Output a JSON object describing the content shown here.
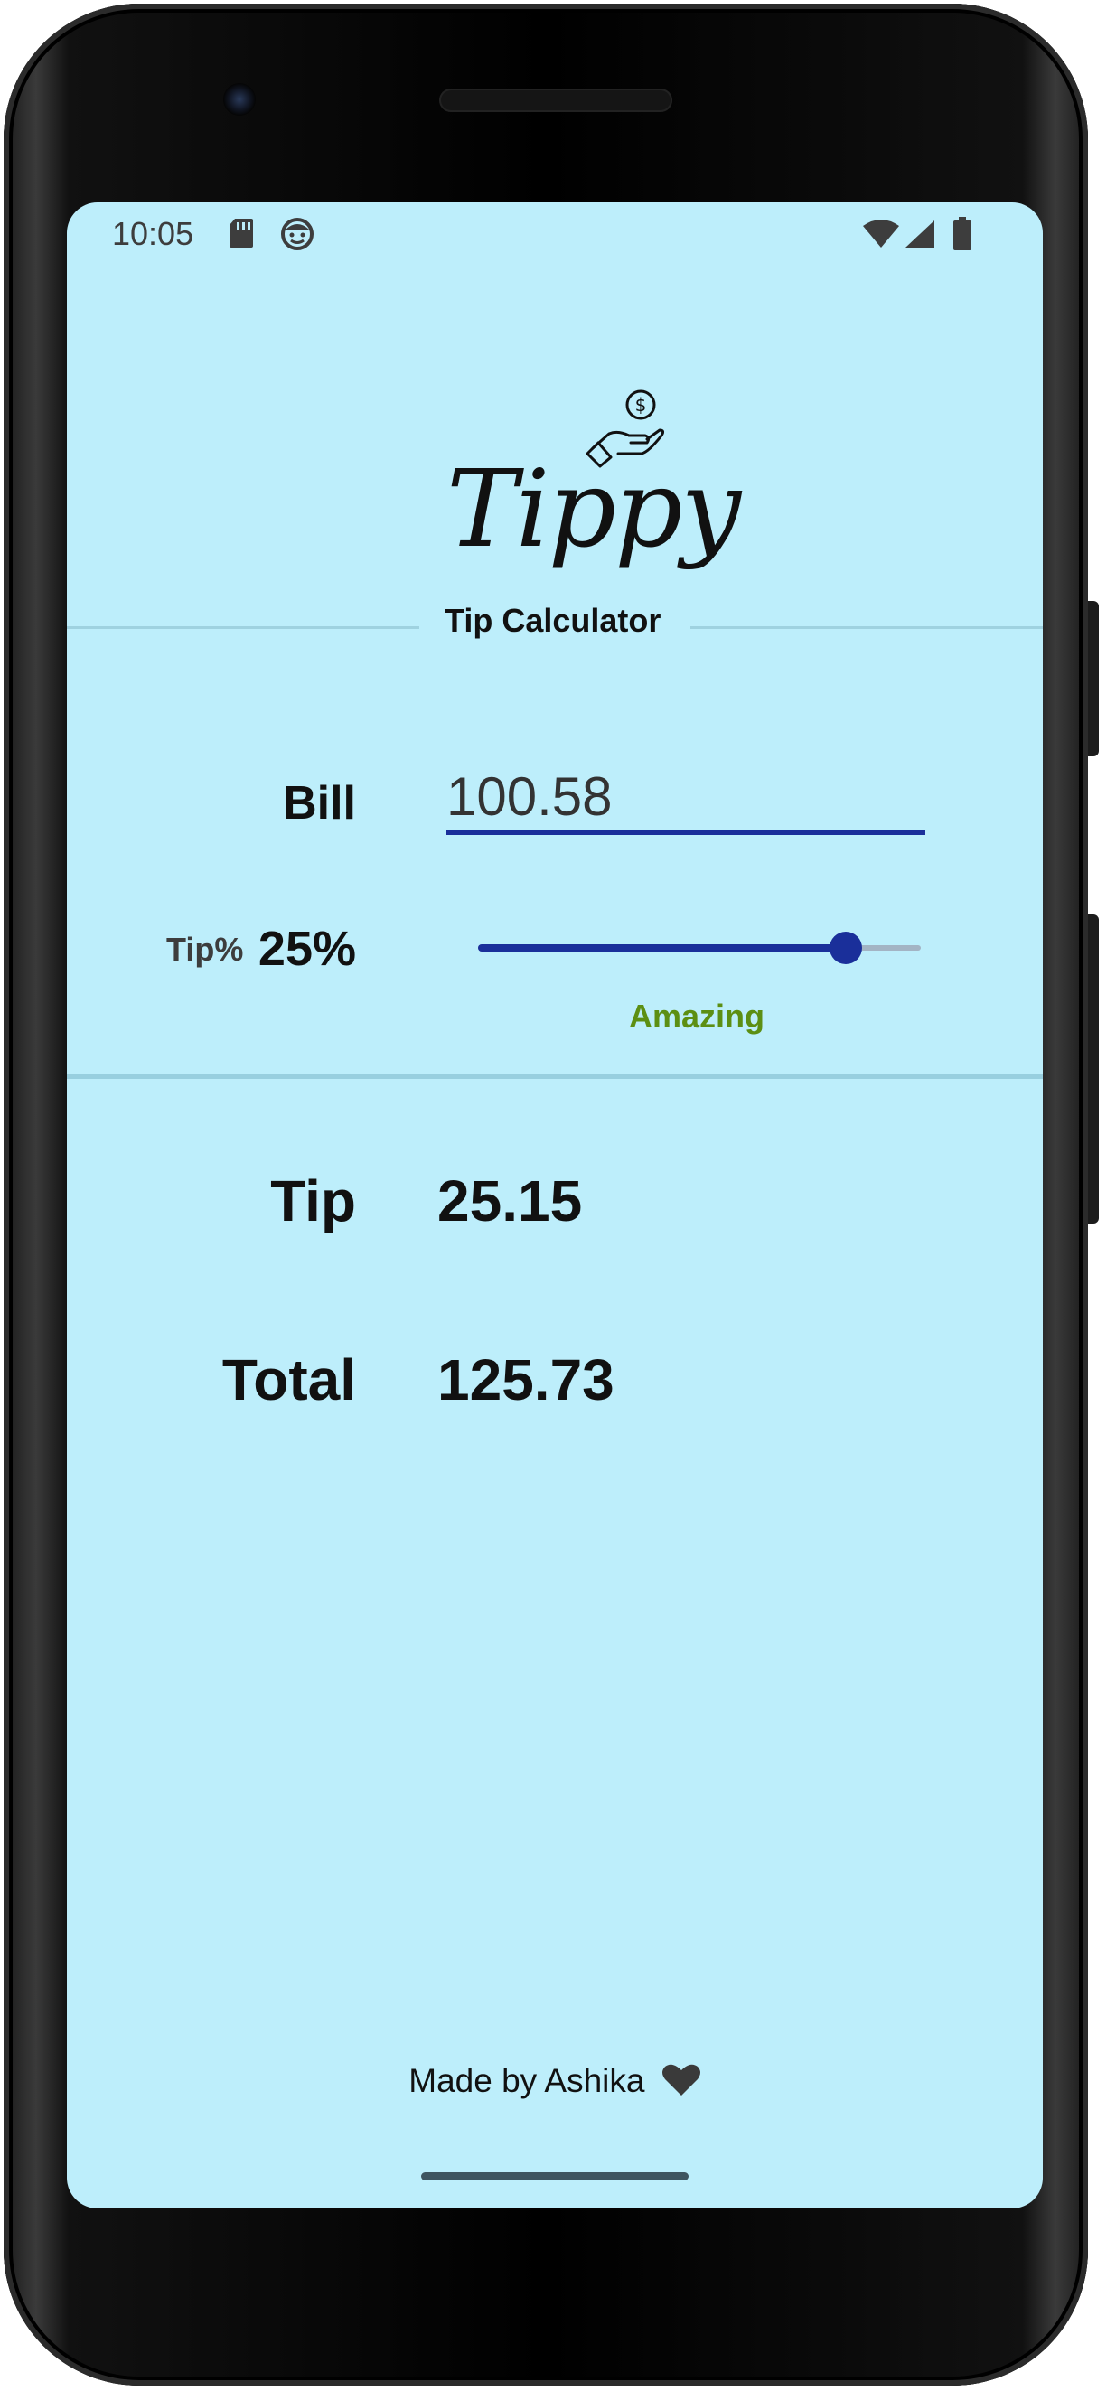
{
  "status_bar": {
    "time": "10:05"
  },
  "app": {
    "logo_text": "Tippy",
    "subtitle": "Tip Calculator"
  },
  "bill": {
    "label": "Bill",
    "value": "100.58"
  },
  "tip_percent": {
    "label": "Tip%",
    "value_text": "25%",
    "slider_fraction": 0.83,
    "description": "Amazing"
  },
  "results": {
    "tip_label": "Tip",
    "tip_value": "25.15",
    "total_label": "Total",
    "total_value": "125.73"
  },
  "footer": {
    "text": "Made by Ashika"
  },
  "colors": {
    "screen_background": "#bdeefb",
    "accent": "#1a2f9a",
    "description_green": "#5c8f13"
  },
  "icons": {
    "status": [
      "sd-card-icon",
      "app-notification-icon",
      "wifi-icon",
      "signal-icon",
      "battery-icon"
    ],
    "logo": "coin-hand-icon",
    "footer": "heart-icon"
  }
}
